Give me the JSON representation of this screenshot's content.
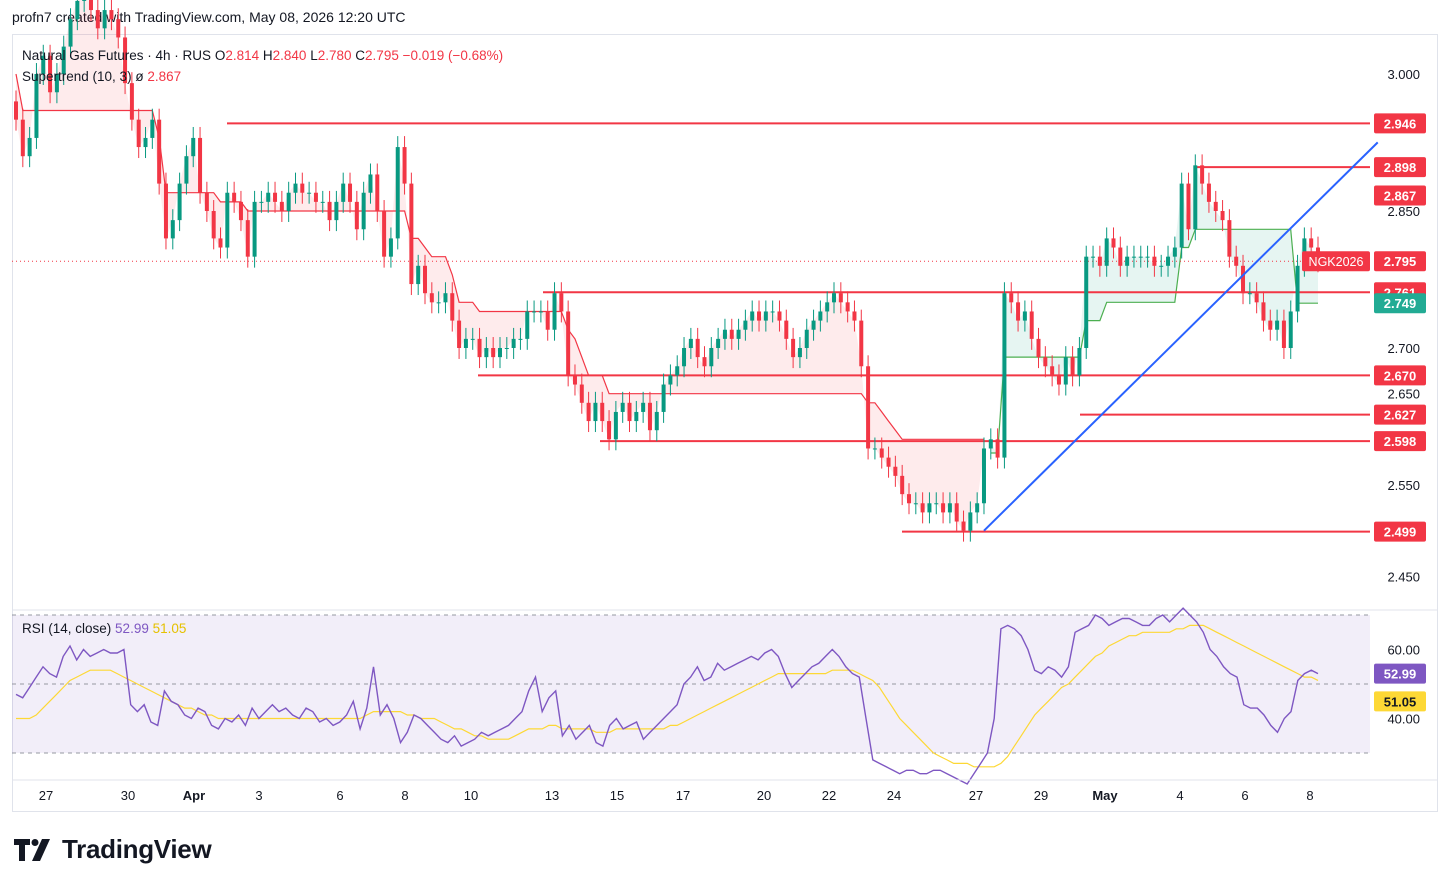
{
  "header": {
    "text": "profn7 created with TradingView.com, May 08, 2026 12:20 UTC"
  },
  "legend": {
    "symbol": "Natural Gas Futures · 4h · RUS",
    "o_label": "O",
    "o": "2.814",
    "h_label": "H",
    "h": "2.840",
    "l_label": "L",
    "l": "2.780",
    "c_label": "C",
    "c": "2.795",
    "change": "−0.019 (−0.68%)",
    "indicator": "Supertrend (10, 3)",
    "indicator_symbol": "ø",
    "indicator_value": "2.867"
  },
  "rsi_legend": {
    "name": "RSI (14, close)",
    "value": "52.99",
    "ma_value": "51.05"
  },
  "brand": {
    "name": "TradingView"
  },
  "colors": {
    "up": "#089981",
    "down": "#f23645",
    "trendline": "#2962ff",
    "rsi": "#7e57c2",
    "rsi_ma": "#fdd835"
  },
  "chart_data": {
    "type": "candlestick",
    "symbol": "NGK2026",
    "timeframe": "4h",
    "price_axis_ticks": [
      "3.000",
      "2.850",
      "2.700",
      "2.650",
      "2.550",
      "2.450"
    ],
    "time_axis_ticks": [
      "27",
      "30",
      "Apr",
      "3",
      "6",
      "8",
      "10",
      "13",
      "15",
      "17",
      "20",
      "22",
      "24",
      "27",
      "29",
      "May",
      "4",
      "6",
      "8"
    ],
    "last_price": {
      "label": "NGK2026",
      "value": "2.795"
    },
    "horizontal_levels": [
      {
        "value": 2.946,
        "label": "2.946"
      },
      {
        "value": 2.898,
        "label": "2.898"
      },
      {
        "value": 2.761,
        "label": "2.761"
      },
      {
        "value": 2.67,
        "label": "2.670"
      },
      {
        "value": 2.627,
        "label": "2.627"
      },
      {
        "value": 2.598,
        "label": "2.598"
      },
      {
        "value": 2.499,
        "label": "2.499"
      }
    ],
    "supertrend_badges": [
      {
        "value": 2.867,
        "label": "2.867",
        "direction": "down"
      },
      {
        "value": 2.749,
        "label": "2.749",
        "direction": "up"
      }
    ],
    "trendline": {
      "from_index": 142,
      "from_price": 2.5,
      "to_index": 198,
      "to_price": 2.912
    },
    "closes": [
      2.95,
      2.91,
      2.93,
      3.0,
      3.02,
      2.98,
      3.0,
      3.03,
      3.06,
      3.08,
      3.1,
      3.07,
      3.05,
      3.07,
      3.06,
      3.04,
      2.99,
      2.95,
      2.92,
      2.93,
      2.95,
      2.88,
      2.82,
      2.84,
      2.88,
      2.91,
      2.93,
      2.87,
      2.85,
      2.82,
      2.81,
      2.87,
      2.86,
      2.84,
      2.8,
      2.86,
      2.86,
      2.87,
      2.86,
      2.85,
      2.87,
      2.88,
      2.87,
      2.87,
      2.86,
      2.86,
      2.84,
      2.86,
      2.88,
      2.86,
      2.83,
      2.87,
      2.89,
      2.85,
      2.8,
      2.82,
      2.92,
      2.88,
      2.77,
      2.79,
      2.76,
      2.75,
      2.75,
      2.76,
      2.73,
      2.7,
      2.71,
      2.71,
      2.69,
      2.7,
      2.69,
      2.7,
      2.7,
      2.71,
      2.71,
      2.74,
      2.74,
      2.74,
      2.72,
      2.76,
      2.74,
      2.67,
      2.66,
      2.64,
      2.62,
      2.64,
      2.62,
      2.6,
      2.63,
      2.64,
      2.62,
      2.63,
      2.64,
      2.61,
      2.63,
      2.66,
      2.67,
      2.68,
      2.7,
      2.71,
      2.69,
      2.68,
      2.7,
      2.71,
      2.72,
      2.71,
      2.72,
      2.73,
      2.74,
      2.73,
      2.74,
      2.74,
      2.73,
      2.71,
      2.69,
      2.7,
      2.72,
      2.73,
      2.74,
      2.75,
      2.76,
      2.75,
      2.74,
      2.73,
      2.68,
      2.59,
      2.59,
      2.58,
      2.57,
      2.56,
      2.54,
      2.53,
      2.53,
      2.52,
      2.53,
      2.53,
      2.52,
      2.53,
      2.51,
      2.5,
      2.52,
      2.53,
      2.59,
      2.6,
      2.58,
      2.76,
      2.75,
      2.73,
      2.74,
      2.71,
      2.69,
      2.68,
      2.67,
      2.66,
      2.69,
      2.67,
      2.7,
      2.8,
      2.8,
      2.79,
      2.82,
      2.81,
      2.79,
      2.8,
      2.8,
      2.8,
      2.8,
      2.79,
      2.79,
      2.8,
      2.81,
      2.88,
      2.83,
      2.9,
      2.88,
      2.86,
      2.85,
      2.84,
      2.8,
      2.79,
      2.76,
      2.76,
      2.75,
      2.73,
      2.72,
      2.73,
      2.7,
      2.74,
      2.79,
      2.82,
      2.81,
      2.795
    ],
    "rsi": [
      47,
      46,
      49,
      52,
      55,
      53,
      52,
      58,
      61,
      57,
      60,
      58,
      59,
      60,
      59,
      59,
      60,
      44,
      42,
      44,
      39,
      38,
      48,
      45,
      44,
      41,
      40,
      43,
      42,
      38,
      37,
      40,
      39,
      41,
      38,
      43,
      40,
      42,
      44,
      42,
      43,
      41,
      40,
      43,
      42,
      39,
      40,
      38,
      39,
      41,
      45,
      37,
      43,
      55,
      41,
      44,
      40,
      33,
      36,
      41,
      40,
      38,
      36,
      34,
      33,
      35,
      32,
      33,
      34,
      36,
      35,
      36,
      37,
      38,
      40,
      42,
      48,
      52,
      42,
      46,
      48,
      35,
      38,
      34,
      36,
      38,
      33,
      32,
      38,
      40,
      37,
      38,
      39,
      34,
      36,
      38,
      40,
      42,
      44,
      50,
      52,
      55,
      51,
      52,
      56,
      54,
      55,
      56,
      57,
      58,
      57,
      59,
      60,
      58,
      53,
      49,
      51,
      53,
      55,
      56,
      58,
      60,
      58,
      55,
      53,
      52,
      40,
      28,
      27,
      26,
      25,
      24,
      25,
      25,
      24,
      24,
      25,
      25,
      24,
      23,
      22,
      21,
      24,
      27,
      30,
      40,
      66,
      67,
      66,
      64,
      60,
      54,
      53,
      55,
      54,
      52,
      55,
      65,
      66,
      67,
      70,
      69,
      67,
      68,
      69,
      69,
      68,
      67,
      67,
      69,
      70,
      68,
      70,
      72,
      70,
      68,
      65,
      60,
      58,
      55,
      53,
      52,
      44,
      43,
      43,
      41,
      38,
      36,
      40,
      42,
      51,
      53,
      54,
      53.0
    ],
    "rsi_ma": [
      40,
      40,
      40,
      41,
      43,
      45,
      47,
      49,
      51,
      52,
      53,
      54,
      54,
      54,
      54,
      53,
      52,
      51,
      50,
      49,
      48,
      47,
      46,
      45,
      44,
      43,
      43,
      42,
      41,
      41,
      40,
      40,
      40,
      40,
      40,
      40,
      40,
      40,
      40,
      40,
      40,
      40,
      40,
      40,
      40,
      40,
      40,
      40,
      40,
      40,
      40,
      40,
      41,
      42,
      42,
      42,
      42,
      42,
      41,
      41,
      40,
      40,
      40,
      39,
      38,
      37,
      37,
      36,
      35,
      35,
      34,
      34,
      34,
      34,
      35,
      36,
      37,
      37,
      37,
      38,
      38,
      37,
      37,
      37,
      37,
      37,
      36,
      36,
      36,
      37,
      37,
      37,
      37,
      37,
      37,
      37,
      37,
      38,
      38,
      39,
      40,
      41,
      42,
      43,
      44,
      45,
      46,
      47,
      48,
      49,
      50,
      51,
      52,
      53,
      53,
      53,
      53,
      53,
      53,
      53,
      53,
      54,
      54,
      54,
      54,
      53,
      52,
      51,
      49,
      46,
      43,
      40,
      38,
      36,
      34,
      32,
      30,
      29,
      28,
      27,
      27,
      27,
      26,
      26,
      26,
      26,
      27,
      29,
      32,
      35,
      38,
      41,
      43,
      45,
      47,
      49,
      50,
      52,
      54,
      56,
      58,
      59,
      61,
      62,
      63,
      64,
      64,
      65,
      65,
      65,
      65,
      65,
      66,
      66,
      67,
      67,
      67,
      66,
      65,
      64,
      63,
      62,
      61,
      60,
      59,
      58,
      57,
      56,
      55,
      54,
      53,
      52,
      52,
      51.05
    ],
    "rsi_levels": [
      "60.00",
      "40.00"
    ],
    "rsi_badges": [
      "52.99",
      "51.05"
    ]
  }
}
